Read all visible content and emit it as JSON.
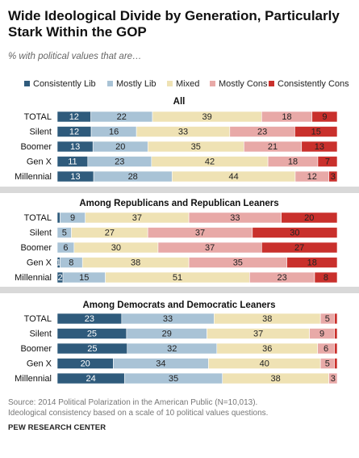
{
  "title": "Wide Ideological Divide by Generation, Particularly Stark Within the GOP",
  "subtitle": "% with political values that are…",
  "legend": [
    {
      "label": "Consistently Lib",
      "color": "#2f5b7c"
    },
    {
      "label": "Mostly Lib",
      "color": "#a9c3d6"
    },
    {
      "label": "Mixed",
      "color": "#efe2b4"
    },
    {
      "label": "Mostly Cons",
      "color": "#e8a9a7"
    },
    {
      "label": "Consistently Cons",
      "color": "#c9302c"
    }
  ],
  "source_lines": [
    "Source: 2014 Political Polarization in the American Public (N=10,013).",
    "Ideological consistency based on a scale of 10 political values questions."
  ],
  "credit": "PEW RESEARCH CENTER",
  "chart_data": [
    {
      "type": "bar",
      "stacked": true,
      "orientation": "horizontal",
      "title": "All",
      "categories": [
        "TOTAL",
        "Silent",
        "Boomer",
        "Gen X",
        "Millennial"
      ],
      "series": [
        {
          "name": "Consistently Lib",
          "values": [
            12,
            12,
            13,
            11,
            13
          ]
        },
        {
          "name": "Mostly Lib",
          "values": [
            22,
            16,
            20,
            23,
            28
          ]
        },
        {
          "name": "Mixed",
          "values": [
            39,
            33,
            35,
            42,
            44
          ]
        },
        {
          "name": "Mostly Cons",
          "values": [
            18,
            23,
            21,
            18,
            12
          ]
        },
        {
          "name": "Consistently Cons",
          "values": [
            9,
            15,
            13,
            7,
            3
          ]
        }
      ]
    },
    {
      "type": "bar",
      "stacked": true,
      "orientation": "horizontal",
      "title": "Among Republicans and Republican Leaners",
      "categories": [
        "TOTAL",
        "Silent",
        "Boomer",
        "Gen X",
        "Millennial"
      ],
      "series": [
        {
          "name": "Consistently Lib",
          "values": [
            1,
            0,
            0,
            1,
            2
          ]
        },
        {
          "name": "Mostly Lib",
          "values": [
            9,
            5,
            6,
            8,
            15
          ]
        },
        {
          "name": "Mixed",
          "values": [
            37,
            27,
            30,
            38,
            51
          ]
        },
        {
          "name": "Mostly Cons",
          "values": [
            33,
            37,
            37,
            35,
            23
          ]
        },
        {
          "name": "Consistently Cons",
          "values": [
            20,
            30,
            27,
            18,
            8
          ]
        }
      ],
      "value_labels": [
        [
          "",
          "9",
          "37",
          "33",
          "20"
        ],
        [
          "",
          "5",
          "27",
          "37",
          "30"
        ],
        [
          "",
          "6",
          "30",
          "37",
          "27"
        ],
        [
          "1",
          "8",
          "38",
          "35",
          "18"
        ],
        [
          "2",
          "15",
          "51",
          "23",
          "8"
        ]
      ]
    },
    {
      "type": "bar",
      "stacked": true,
      "orientation": "horizontal",
      "title": "Among Democrats and Democratic Leaners",
      "categories": [
        "TOTAL",
        "Silent",
        "Boomer",
        "Gen X",
        "Millennial"
      ],
      "series": [
        {
          "name": "Consistently Lib",
          "values": [
            23,
            25,
            25,
            20,
            24
          ]
        },
        {
          "name": "Mostly Lib",
          "values": [
            33,
            29,
            32,
            34,
            35
          ]
        },
        {
          "name": "Mixed",
          "values": [
            38,
            37,
            36,
            40,
            38
          ]
        },
        {
          "name": "Mostly Cons",
          "values": [
            5,
            9,
            6,
            5,
            3
          ]
        },
        {
          "name": "Consistently Cons",
          "values": [
            1,
            1,
            1,
            1,
            0
          ]
        }
      ],
      "value_labels": [
        [
          "23",
          "33",
          "38",
          "5",
          ""
        ],
        [
          "25",
          "29",
          "37",
          "9",
          ""
        ],
        [
          "25",
          "32",
          "36",
          "6",
          ""
        ],
        [
          "20",
          "34",
          "40",
          "5",
          ""
        ],
        [
          "24",
          "35",
          "38",
          "3",
          ""
        ]
      ]
    }
  ]
}
